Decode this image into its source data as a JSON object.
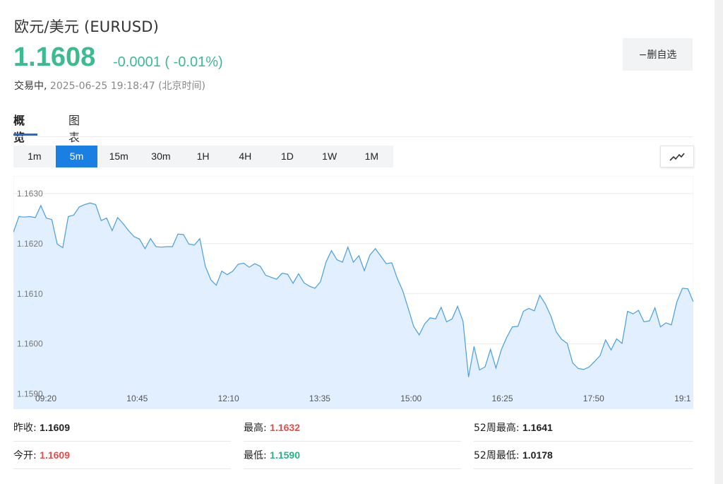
{
  "header": {
    "title": "欧元/美元  (EURUSD)",
    "price": "1.1608",
    "change": "-0.0001 ( -0.01%)",
    "status": "交易中,",
    "timestamp": "2025-06-25 19:18:47",
    "timezone": "(北京时间)",
    "watch_button": "−删自选",
    "price_color": "#3dbb8f"
  },
  "tabs": [
    {
      "label": "概览",
      "active": true
    },
    {
      "label": "图表",
      "active": false
    }
  ],
  "periods": [
    "1m",
    "5m",
    "15m",
    "30m",
    "1H",
    "4H",
    "1D",
    "1W",
    "1M"
  ],
  "active_period": "5m",
  "chart_type_icon": "line-chart-icon",
  "chart_data": {
    "type": "area",
    "y_ticks": [
      "1.1630",
      "1.1620",
      "1.1610",
      "1.1600",
      "1.1590"
    ],
    "ylim": [
      1.1587,
      1.16335
    ],
    "x_ticks": [
      "09:20",
      "10:45",
      "12:10",
      "13:35",
      "15:00",
      "16:25",
      "17:50",
      "19:1"
    ],
    "grid": true,
    "line_color": "#4a9de0",
    "fill_color": "#e1efff",
    "values": [
      1.16223,
      1.16254,
      1.16253,
      1.16254,
      1.16252,
      1.16276,
      1.16251,
      1.16248,
      1.16199,
      1.16192,
      1.16254,
      1.16257,
      1.16273,
      1.16278,
      1.16281,
      1.16278,
      1.16246,
      1.16251,
      1.16226,
      1.16252,
      1.1624,
      1.16226,
      1.16214,
      1.16209,
      1.1619,
      1.1621,
      1.16194,
      1.16193,
      1.16194,
      1.16194,
      1.16219,
      1.16218,
      1.16199,
      1.16197,
      1.1621,
      1.16155,
      1.16128,
      1.16117,
      1.16145,
      1.16138,
      1.16145,
      1.16159,
      1.16161,
      1.16153,
      1.1616,
      1.16155,
      1.16137,
      1.16133,
      1.16129,
      1.16141,
      1.16139,
      1.16121,
      1.1614,
      1.16122,
      1.16115,
      1.16111,
      1.16124,
      1.16163,
      1.16186,
      1.16168,
      1.16163,
      1.16193,
      1.16163,
      1.16176,
      1.16146,
      1.16177,
      1.1619,
      1.16175,
      1.1616,
      1.16162,
      1.16131,
      1.16106,
      1.16071,
      1.16035,
      1.16018,
      1.1604,
      1.16052,
      1.1605,
      1.16073,
      1.16044,
      1.1605,
      1.16075,
      1.16045,
      1.15934,
      1.15995,
      1.15948,
      1.15954,
      1.15989,
      1.15952,
      1.15989,
      1.16014,
      1.16034,
      1.16035,
      1.16065,
      1.16071,
      1.16066,
      1.16097,
      1.1608,
      1.16056,
      1.16024,
      1.16009,
      1.16001,
      1.15962,
      1.15951,
      1.15949,
      1.15954,
      1.15965,
      1.15977,
      1.16008,
      1.15988,
      1.1601,
      1.16001,
      1.16065,
      1.1606,
      1.16067,
      1.16044,
      1.16046,
      1.16072,
      1.16034,
      1.16042,
      1.16038,
      1.16084,
      1.16111,
      1.1611,
      1.16084
    ]
  },
  "stats": [
    {
      "label": "昨收:",
      "value": "1.1609",
      "color": "#222222"
    },
    {
      "label": "最高:",
      "value": "1.1632",
      "color": "#e84b4b"
    },
    {
      "label": "52周最高:",
      "value": "1.1641",
      "color": "#222222"
    },
    {
      "label": "今开:",
      "value": "1.1609",
      "color": "#e84b4b"
    },
    {
      "label": "最低:",
      "value": "1.1590",
      "color": "#2cb085"
    },
    {
      "label": "52周最低:",
      "value": "1.0178",
      "color": "#222222"
    }
  ]
}
